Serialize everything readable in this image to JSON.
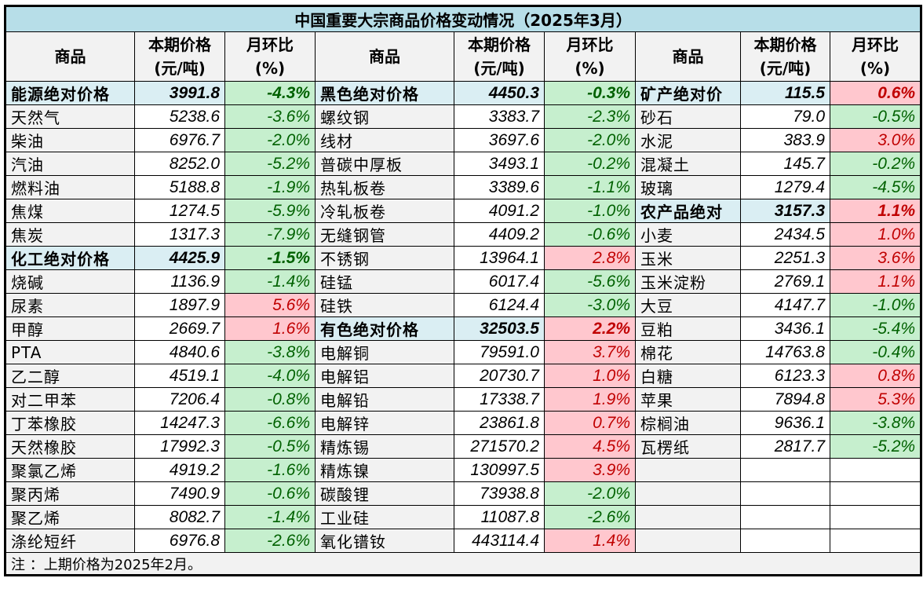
{
  "title": "中国重要大宗商品价格变动情况（2025年3月）",
  "headers": {
    "name": "商品",
    "price_1": "本期价格",
    "price_2": "(元/吨)",
    "chg_1": "月环比",
    "chg_2": "(%)"
  },
  "colors": {
    "title_bg": "#b7dee8",
    "category_bg": "#daeef3",
    "down_bg": "#c6efce",
    "down_text": "#006100",
    "up_bg": "#ffc7ce",
    "up_text": "#c00000"
  },
  "groups": [
    [
      [
        "能源绝对价格",
        "3991.8",
        "-4.3%",
        "cat"
      ],
      [
        "天然气",
        "5238.6",
        "-3.6%",
        ""
      ],
      [
        "柴油",
        "6976.7",
        "-2.0%",
        ""
      ],
      [
        "汽油",
        "8252.0",
        "-5.2%",
        ""
      ],
      [
        "燃料油",
        "5188.8",
        "-1.9%",
        ""
      ],
      [
        "焦煤",
        "1274.5",
        "-5.9%",
        ""
      ],
      [
        "焦炭",
        "1317.3",
        "-7.9%",
        ""
      ],
      [
        "化工绝对价格",
        "4425.9",
        "-1.5%",
        "cat"
      ],
      [
        "烧碱",
        "1136.9",
        "-1.4%",
        ""
      ],
      [
        "尿素",
        "1897.9",
        "5.6%",
        ""
      ],
      [
        "甲醇",
        "2669.7",
        "1.6%",
        ""
      ],
      [
        "PTA",
        "4840.6",
        "-3.8%",
        ""
      ],
      [
        "乙二醇",
        "4519.1",
        "-4.0%",
        ""
      ],
      [
        "对二甲苯",
        "7206.4",
        "-0.8%",
        ""
      ],
      [
        "丁苯橡胶",
        "14247.3",
        "-6.6%",
        ""
      ],
      [
        "天然橡胶",
        "17992.3",
        "-0.5%",
        ""
      ],
      [
        "聚氯乙烯",
        "4919.2",
        "-1.6%",
        ""
      ],
      [
        "聚丙烯",
        "7490.9",
        "-0.6%",
        ""
      ],
      [
        "聚乙烯",
        "8082.7",
        "-1.4%",
        ""
      ],
      [
        "涤纶短纤",
        "6976.8",
        "-2.6%",
        ""
      ]
    ],
    [
      [
        "黑色绝对价格",
        "4450.3",
        "-0.3%",
        "cat"
      ],
      [
        "螺纹钢",
        "3383.7",
        "-2.3%",
        ""
      ],
      [
        "线材",
        "3697.6",
        "-2.0%",
        ""
      ],
      [
        "普碳中厚板",
        "3493.1",
        "-0.2%",
        ""
      ],
      [
        "热轧板卷",
        "3389.6",
        "-1.1%",
        ""
      ],
      [
        "冷轧板卷",
        "4091.2",
        "-1.0%",
        ""
      ],
      [
        "无缝钢管",
        "4409.2",
        "-0.6%",
        ""
      ],
      [
        "不锈钢",
        "13964.1",
        "2.8%",
        ""
      ],
      [
        "硅锰",
        "6017.4",
        "-5.6%",
        ""
      ],
      [
        "硅铁",
        "6124.4",
        "-3.0%",
        ""
      ],
      [
        "有色绝对价格",
        "32503.5",
        "2.2%",
        "cat"
      ],
      [
        "电解铜",
        "79591.0",
        "3.7%",
        ""
      ],
      [
        "电解铝",
        "20730.7",
        "1.0%",
        ""
      ],
      [
        "电解铅",
        "17338.7",
        "1.9%",
        ""
      ],
      [
        "电解锌",
        "23861.8",
        "0.7%",
        ""
      ],
      [
        "精炼锡",
        "271570.2",
        "4.5%",
        ""
      ],
      [
        "精炼镍",
        "130997.5",
        "3.9%",
        ""
      ],
      [
        "碳酸锂",
        "73938.8",
        "-2.0%",
        ""
      ],
      [
        "工业硅",
        "11087.8",
        "-2.6%",
        ""
      ],
      [
        "氧化镨钕",
        "443114.4",
        "1.4%",
        ""
      ]
    ],
    [
      [
        "矿产绝对价",
        "115.5",
        "0.6%",
        "cat"
      ],
      [
        "砂石",
        "79.0",
        "-0.5%",
        ""
      ],
      [
        "水泥",
        "383.9",
        "3.0%",
        ""
      ],
      [
        "混凝土",
        "145.7",
        "-0.2%",
        ""
      ],
      [
        "玻璃",
        "1279.4",
        "-4.5%",
        ""
      ],
      [
        "农产品绝对",
        "3157.3",
        "1.1%",
        "cat"
      ],
      [
        "小麦",
        "2434.5",
        "1.0%",
        ""
      ],
      [
        "玉米",
        "2251.3",
        "3.6%",
        ""
      ],
      [
        "玉米淀粉",
        "2769.1",
        "1.1%",
        ""
      ],
      [
        "大豆",
        "4147.7",
        "-1.0%",
        ""
      ],
      [
        "豆粕",
        "3436.1",
        "-5.4%",
        ""
      ],
      [
        "棉花",
        "14763.8",
        "-0.4%",
        ""
      ],
      [
        "白糖",
        "6123.3",
        "0.8%",
        ""
      ],
      [
        "苹果",
        "7894.8",
        "5.3%",
        ""
      ],
      [
        "棕榈油",
        "9636.1",
        "-3.8%",
        ""
      ],
      [
        "瓦楞纸",
        "2817.7",
        "-5.2%",
        ""
      ],
      [
        "",
        "",
        "",
        ""
      ],
      [
        "",
        "",
        "",
        ""
      ],
      [
        "",
        "",
        "",
        ""
      ],
      [
        "",
        "",
        "",
        ""
      ]
    ]
  ],
  "note": "注 ：上期价格为2025年2月。"
}
